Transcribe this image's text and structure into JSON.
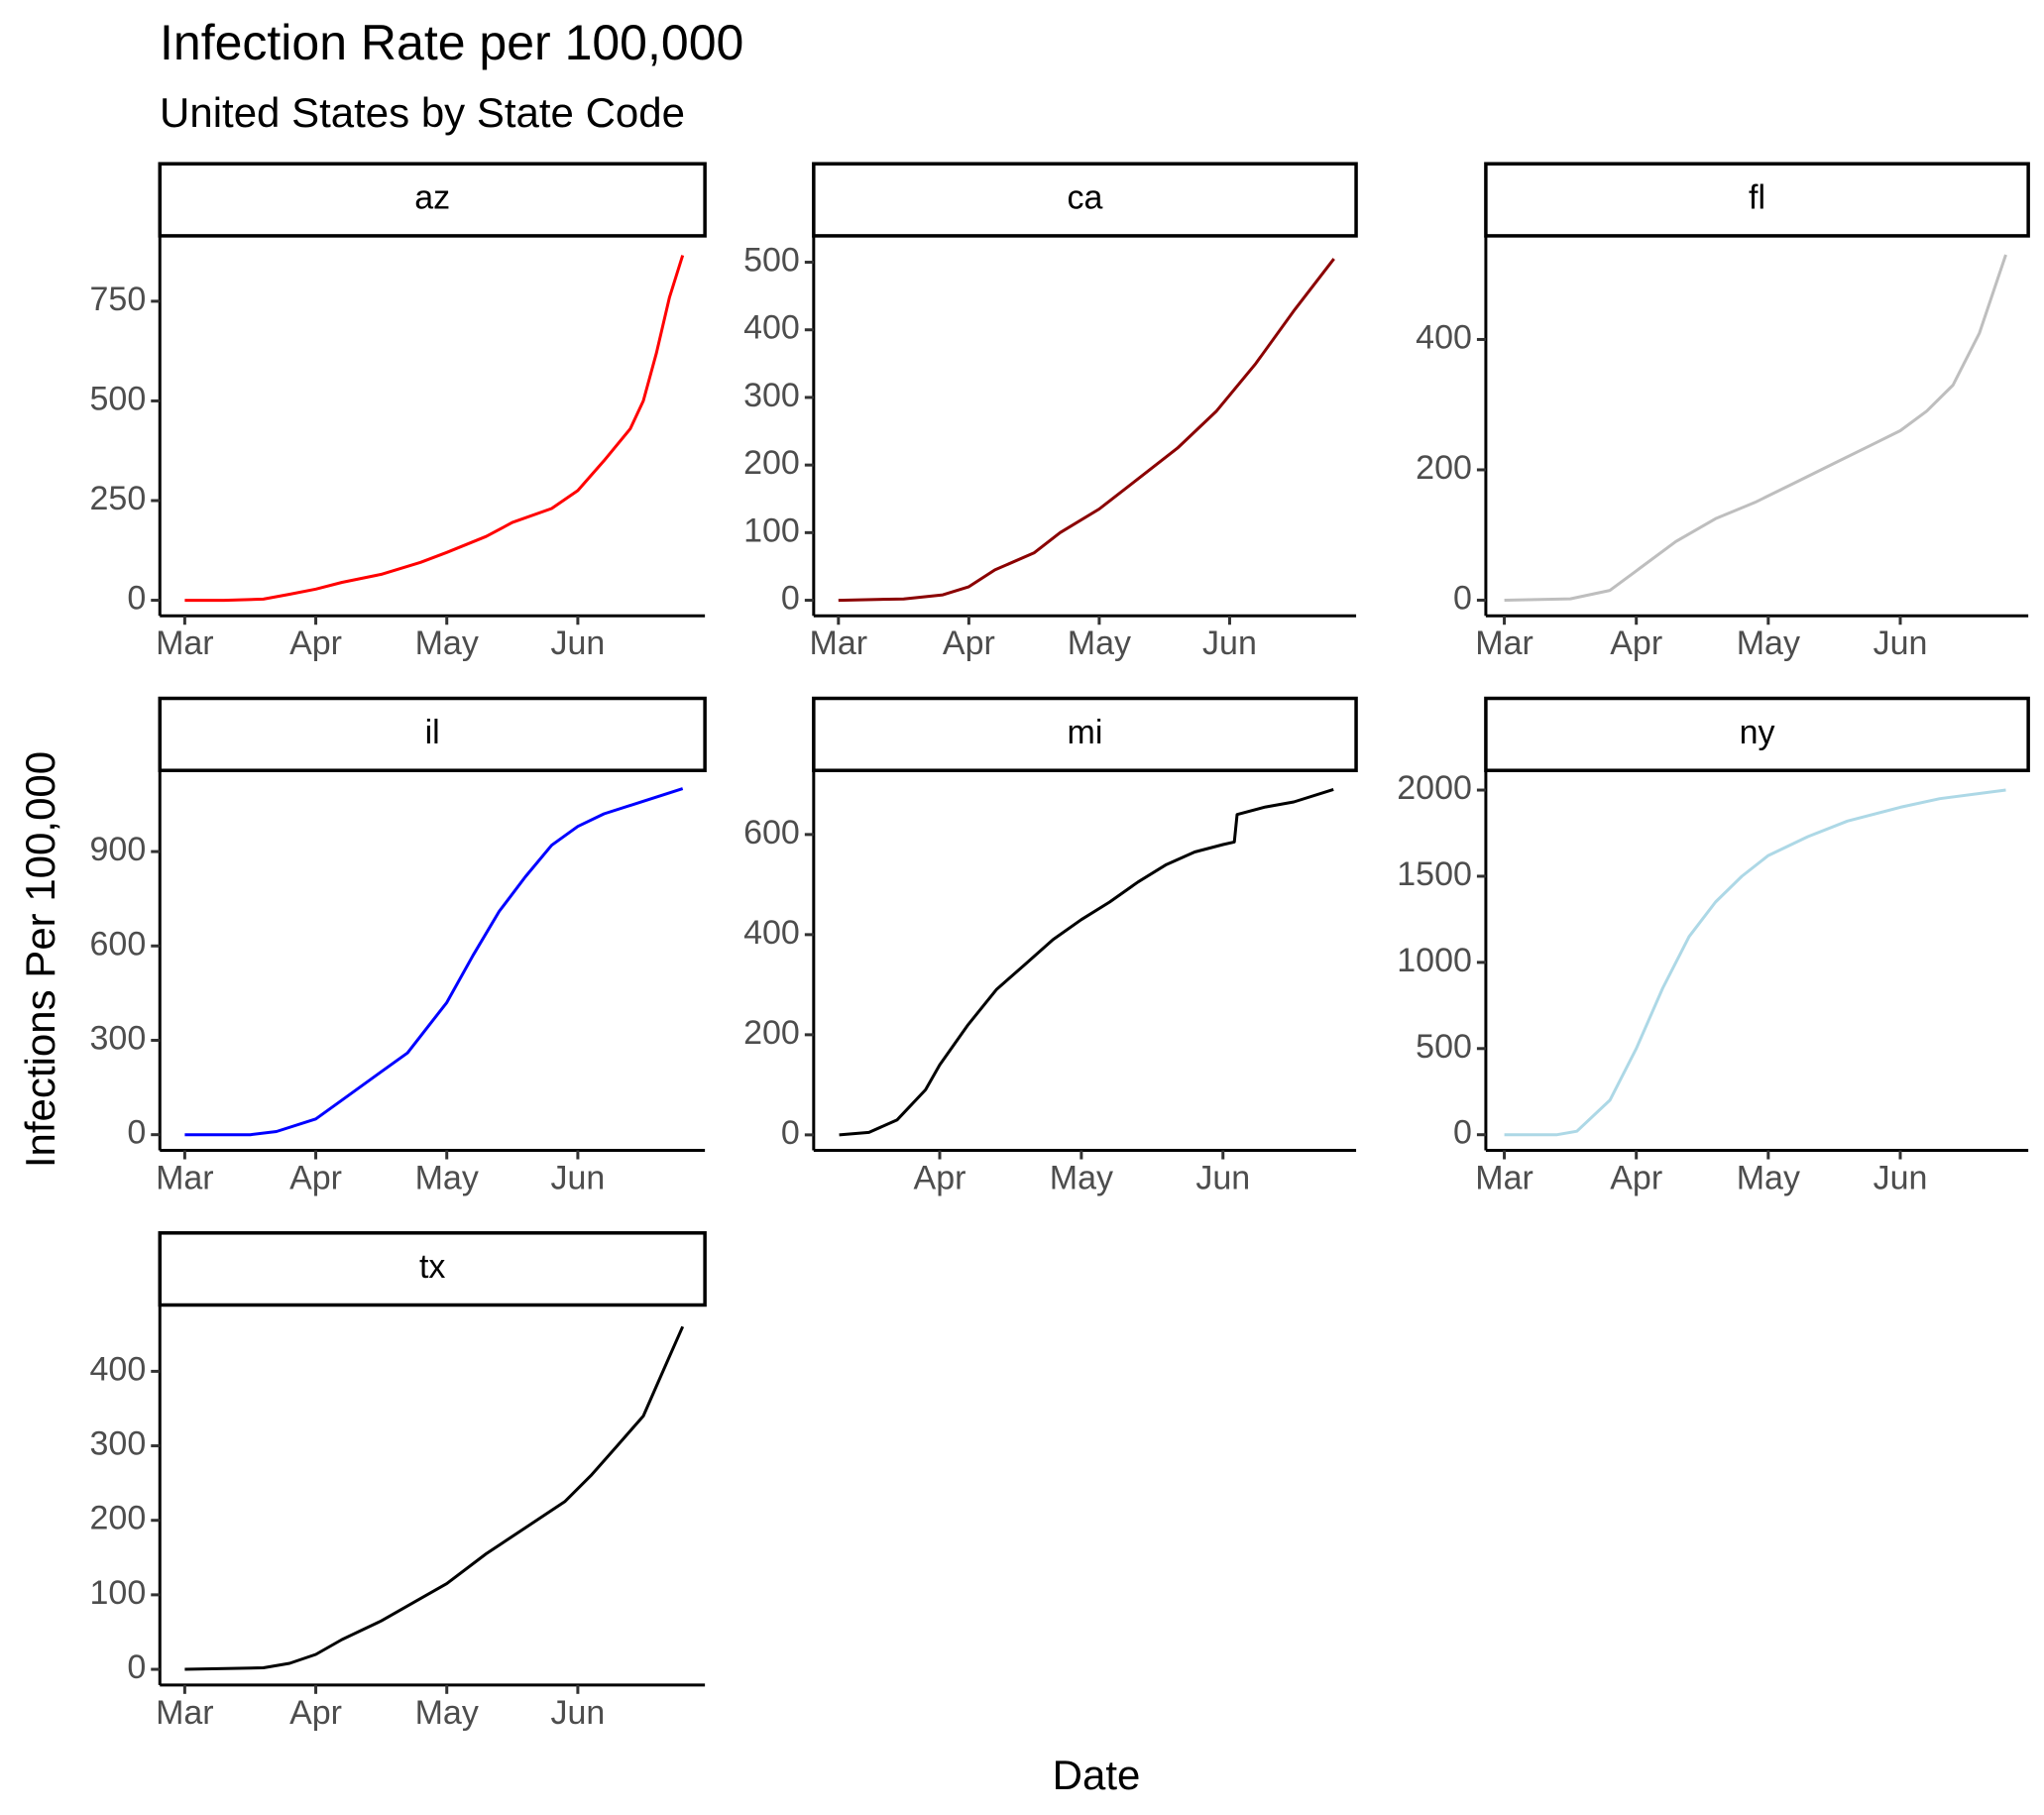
{
  "title": "Infection Rate per 100,000",
  "subtitle": "United States by State Code",
  "xlabel": "Date",
  "ylabel": "Infections Per 100,000",
  "chart_data": [
    {
      "type": "line",
      "title": "az",
      "color": "#ff0000",
      "x": [
        3.0,
        3.3,
        3.6,
        3.8,
        4.0,
        4.2,
        4.5,
        4.8,
        5.0,
        5.3,
        5.5,
        5.8,
        6.0,
        6.2,
        6.4,
        6.5,
        6.6,
        6.7,
        6.8
      ],
      "values": [
        0,
        0,
        3,
        15,
        28,
        45,
        65,
        95,
        120,
        160,
        195,
        230,
        275,
        350,
        430,
        500,
        620,
        760,
        865
      ],
      "xlim": [
        2.81,
        6.97
      ],
      "ylim": [
        -39,
        914
      ],
      "yticks": [
        0,
        250,
        500,
        750
      ],
      "xticks": [
        {
          "value": 3,
          "label": "Mar"
        },
        {
          "value": 4,
          "label": "Apr"
        },
        {
          "value": 5,
          "label": "May"
        },
        {
          "value": 6,
          "label": "Jun"
        }
      ]
    },
    {
      "type": "line",
      "title": "ca",
      "color": "#8b0000",
      "x": [
        3.0,
        3.5,
        3.8,
        4.0,
        4.2,
        4.5,
        4.7,
        5.0,
        5.3,
        5.6,
        5.9,
        6.2,
        6.5,
        6.7,
        6.8
      ],
      "values": [
        0,
        2,
        8,
        20,
        45,
        70,
        100,
        135,
        180,
        225,
        280,
        350,
        430,
        480,
        505
      ],
      "xlim": [
        2.81,
        6.97
      ],
      "ylim": [
        -23,
        539
      ],
      "yticks": [
        0,
        100,
        200,
        300,
        400,
        500
      ],
      "xticks": [
        {
          "value": 3,
          "label": "Mar"
        },
        {
          "value": 4,
          "label": "Apr"
        },
        {
          "value": 5,
          "label": "May"
        },
        {
          "value": 6,
          "label": "Jun"
        }
      ]
    },
    {
      "type": "line",
      "title": "fl",
      "color": "#bebebe",
      "x": [
        3.0,
        3.5,
        3.8,
        4.0,
        4.3,
        4.6,
        4.9,
        5.2,
        5.5,
        5.8,
        6.0,
        6.2,
        6.4,
        6.6,
        6.7,
        6.8
      ],
      "values": [
        0,
        2,
        15,
        45,
        90,
        125,
        150,
        180,
        210,
        240,
        260,
        290,
        330,
        410,
        470,
        530
      ],
      "xlim": [
        2.86,
        6.97
      ],
      "ylim": [
        -24,
        559
      ],
      "yticks": [
        0,
        200,
        400
      ],
      "xticks": [
        {
          "value": 3,
          "label": "Mar"
        },
        {
          "value": 4,
          "label": "Apr"
        },
        {
          "value": 5,
          "label": "May"
        },
        {
          "value": 6,
          "label": "Jun"
        }
      ]
    },
    {
      "type": "line",
      "title": "il",
      "color": "#0000ff",
      "x": [
        3.0,
        3.5,
        3.7,
        4.0,
        4.2,
        4.5,
        4.7,
        5.0,
        5.2,
        5.4,
        5.6,
        5.8,
        6.0,
        6.2,
        6.5,
        6.8
      ],
      "values": [
        0,
        0,
        10,
        50,
        110,
        200,
        260,
        420,
        570,
        710,
        820,
        920,
        980,
        1020,
        1060,
        1100
      ],
      "xlim": [
        2.81,
        6.97
      ],
      "ylim": [
        -50,
        1158
      ],
      "yticks": [
        0,
        300,
        600,
        900
      ],
      "xticks": [
        {
          "value": 3,
          "label": "Mar"
        },
        {
          "value": 4,
          "label": "Apr"
        },
        {
          "value": 5,
          "label": "May"
        },
        {
          "value": 6,
          "label": "Jun"
        }
      ]
    },
    {
      "type": "line",
      "title": "mi",
      "color": "#000000",
      "x": [
        3.29,
        3.5,
        3.7,
        3.9,
        4.0,
        4.2,
        4.4,
        4.6,
        4.8,
        5.0,
        5.2,
        5.4,
        5.6,
        5.8,
        6.0,
        6.08,
        6.1,
        6.3,
        6.5,
        6.78
      ],
      "values": [
        0,
        5,
        30,
        90,
        140,
        220,
        290,
        340,
        390,
        430,
        465,
        505,
        540,
        565,
        580,
        585,
        640,
        655,
        665,
        690
      ],
      "xlim": [
        3.11,
        6.94
      ],
      "ylim": [
        -31,
        728
      ],
      "yticks": [
        0,
        200,
        400,
        600
      ],
      "xticks": [
        {
          "value": 4,
          "label": "Apr"
        },
        {
          "value": 5,
          "label": "May"
        },
        {
          "value": 6,
          "label": "Jun"
        }
      ]
    },
    {
      "type": "line",
      "title": "ny",
      "color": "#add8e6",
      "x": [
        3.0,
        3.4,
        3.55,
        3.8,
        4.0,
        4.2,
        4.4,
        4.6,
        4.8,
        5.0,
        5.3,
        5.6,
        6.0,
        6.3,
        6.8
      ],
      "values": [
        0,
        0,
        20,
        200,
        500,
        850,
        1150,
        1350,
        1500,
        1620,
        1730,
        1820,
        1900,
        1950,
        2000
      ],
      "xlim": [
        2.86,
        6.97
      ],
      "ylim": [
        -91,
        2114
      ],
      "yticks": [
        0,
        500,
        1000,
        1500,
        2000
      ],
      "xticks": [
        {
          "value": 3,
          "label": "Mar"
        },
        {
          "value": 4,
          "label": "Apr"
        },
        {
          "value": 5,
          "label": "May"
        },
        {
          "value": 6,
          "label": "Jun"
        }
      ]
    },
    {
      "type": "line",
      "title": "tx",
      "color": "#000000",
      "x": [
        3.0,
        3.6,
        3.8,
        4.0,
        4.2,
        4.5,
        4.8,
        5.0,
        5.3,
        5.6,
        5.9,
        6.1,
        6.3,
        6.5,
        6.6,
        6.7,
        6.8
      ],
      "values": [
        0,
        2,
        8,
        20,
        40,
        65,
        95,
        115,
        155,
        190,
        225,
        260,
        300,
        340,
        380,
        420,
        460
      ],
      "xlim": [
        2.81,
        6.97
      ],
      "ylim": [
        -21,
        489
      ],
      "yticks": [
        0,
        100,
        200,
        300,
        400
      ],
      "xticks": [
        {
          "value": 3,
          "label": "Mar"
        },
        {
          "value": 4,
          "label": "Apr"
        },
        {
          "value": 5,
          "label": "May"
        },
        {
          "value": 6,
          "label": "Jun"
        }
      ]
    }
  ]
}
